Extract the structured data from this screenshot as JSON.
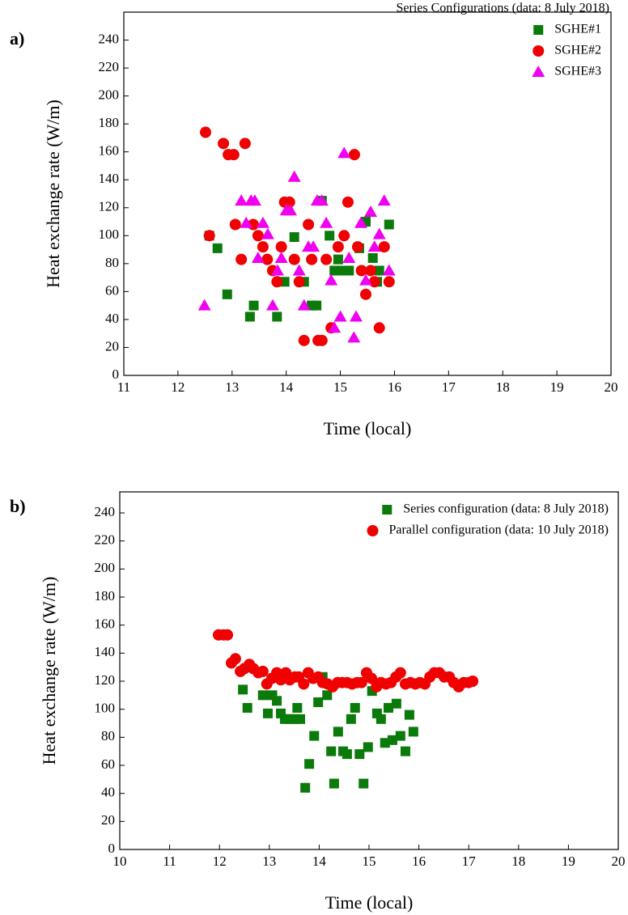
{
  "chart_data": [
    {
      "type": "scatter",
      "panel_label": "a)",
      "title": "Series Configurations (data: 8 July 2018)",
      "x_label": "Time (local)",
      "y_label": "Heat exchange rate (W/m)",
      "xlim": [
        11,
        20
      ],
      "ylim": [
        0,
        260
      ],
      "xticks": [
        11,
        12,
        13,
        14,
        15,
        16,
        17,
        18,
        19,
        20
      ],
      "yticks": [
        0,
        20,
        40,
        60,
        80,
        100,
        120,
        140,
        160,
        180,
        200,
        220,
        240
      ],
      "legend": "upper right",
      "series": [
        {
          "name": "SGHE#1",
          "color": "#0a7a0a",
          "marker": "square",
          "x": [
            12.58,
            12.73,
            12.91,
            13.33,
            13.4,
            13.83,
            13.97,
            14.15,
            14.33,
            14.47,
            14.56,
            14.66,
            14.8,
            14.89,
            14.96,
            15.04,
            15.16,
            15.35,
            15.47,
            15.6,
            15.68,
            15.72,
            15.9
          ],
          "values": [
            100,
            91,
            58,
            42,
            50,
            42,
            67,
            99,
            67,
            50,
            50,
            125,
            100,
            75,
            83,
            75,
            75,
            91,
            110,
            84,
            67,
            75,
            108
          ]
        },
        {
          "name": "SGHE#2",
          "color": "#f00000",
          "marker": "circle",
          "x": [
            12.51,
            12.58,
            12.84,
            12.93,
            13.03,
            13.06,
            13.17,
            13.24,
            13.39,
            13.48,
            13.57,
            13.65,
            13.75,
            13.83,
            13.91,
            13.97,
            14.06,
            14.15,
            14.24,
            14.33,
            14.41,
            14.47,
            14.59,
            14.66,
            14.74,
            14.83,
            14.96,
            15.07,
            15.14,
            15.26,
            15.32,
            15.39,
            15.47,
            15.56,
            15.63,
            15.72,
            15.81,
            15.9
          ],
          "values": [
            174,
            100,
            166,
            158,
            158,
            108,
            83,
            166,
            108,
            100,
            92,
            83,
            75,
            67,
            92,
            124,
            124,
            83,
            67,
            25,
            108,
            83,
            25,
            25,
            83,
            34,
            92,
            100,
            124,
            158,
            92,
            75,
            58,
            75,
            67,
            34,
            92,
            67
          ]
        },
        {
          "name": "SGHE#3",
          "color": "#f000f0",
          "marker": "triangle",
          "x": [
            12.49,
            13.17,
            13.26,
            13.35,
            13.42,
            13.48,
            13.57,
            13.66,
            13.75,
            13.84,
            13.91,
            14.0,
            14.08,
            14.15,
            14.24,
            14.33,
            14.41,
            14.5,
            14.57,
            14.66,
            14.74,
            14.83,
            14.89,
            15.0,
            15.07,
            15.16,
            15.29,
            15.25,
            15.38,
            15.47,
            15.56,
            15.63,
            15.72,
            15.81,
            15.9
          ],
          "values": [
            50,
            125,
            109,
            125,
            125,
            84,
            109,
            101,
            50,
            75,
            84,
            118,
            118,
            142,
            75,
            50,
            92,
            92,
            125,
            125,
            109,
            68,
            34,
            42,
            159,
            84,
            42,
            27,
            109,
            68,
            117,
            92,
            101,
            125,
            75
          ]
        }
      ]
    },
    {
      "type": "scatter",
      "panel_label": "b)",
      "x_label": "Time (local)",
      "y_label": "Heat exchange rate (W/m)",
      "xlim": [
        10,
        20
      ],
      "ylim": [
        0,
        255
      ],
      "xticks": [
        10,
        11,
        12,
        13,
        14,
        15,
        16,
        17,
        18,
        19,
        20
      ],
      "yticks": [
        0,
        20,
        40,
        60,
        80,
        100,
        120,
        140,
        160,
        180,
        200,
        220,
        240
      ],
      "legend": "upper right",
      "series": [
        {
          "name": "Series configuration (data: 8 July 2018)",
          "color": "#0a7a0a",
          "marker": "square",
          "x": [
            12.47,
            12.56,
            12.87,
            12.97,
            13.06,
            13.15,
            13.23,
            13.31,
            13.41,
            13.51,
            13.56,
            13.62,
            13.72,
            13.8,
            13.9,
            13.98,
            14.07,
            14.16,
            14.24,
            14.3,
            14.38,
            14.48,
            14.56,
            14.64,
            14.72,
            14.81,
            14.89,
            14.98,
            15.06,
            15.16,
            15.24,
            15.32,
            15.39,
            15.47,
            15.55,
            15.63,
            15.73,
            15.81,
            15.89
          ],
          "values": [
            114,
            101,
            110,
            97,
            110,
            106,
            97,
            93,
            93,
            93,
            101,
            93,
            44,
            61,
            81,
            105,
            123,
            110,
            70,
            47,
            84,
            70,
            68,
            93,
            101,
            68,
            47,
            73,
            113,
            97,
            93,
            76,
            101,
            78,
            104,
            81,
            70,
            96,
            84
          ]
        },
        {
          "name": "Parallel configuration (data: 10 July 2018)",
          "color": "#f00000",
          "marker": "circle",
          "x": [
            11.98,
            12.08,
            12.16,
            12.24,
            12.32,
            12.42,
            12.5,
            12.6,
            12.68,
            12.78,
            12.87,
            12.95,
            13.05,
            13.15,
            13.23,
            13.33,
            13.41,
            13.51,
            13.59,
            13.69,
            13.78,
            13.88,
            13.98,
            14.07,
            14.17,
            14.27,
            14.37,
            14.46,
            14.56,
            14.66,
            14.76,
            14.85,
            14.95,
            15.05,
            15.15,
            15.24,
            15.34,
            15.44,
            15.54,
            15.63,
            15.73,
            15.83,
            15.93,
            16.02,
            16.12,
            16.22,
            16.31,
            16.41,
            16.51,
            16.61,
            16.7,
            16.8,
            16.9,
            17.0,
            17.08
          ],
          "values": [
            153,
            153,
            153,
            133,
            136,
            127,
            129,
            132,
            129,
            126,
            127,
            118,
            122,
            126,
            121,
            126,
            121,
            123,
            123,
            118,
            126,
            122,
            123,
            119,
            118,
            116,
            119,
            119,
            119,
            118,
            119,
            119,
            126,
            122,
            116,
            119,
            118,
            119,
            123,
            126,
            118,
            119,
            118,
            119,
            118,
            123,
            126,
            126,
            123,
            123,
            119,
            116,
            119,
            119,
            120
          ]
        }
      ]
    }
  ]
}
